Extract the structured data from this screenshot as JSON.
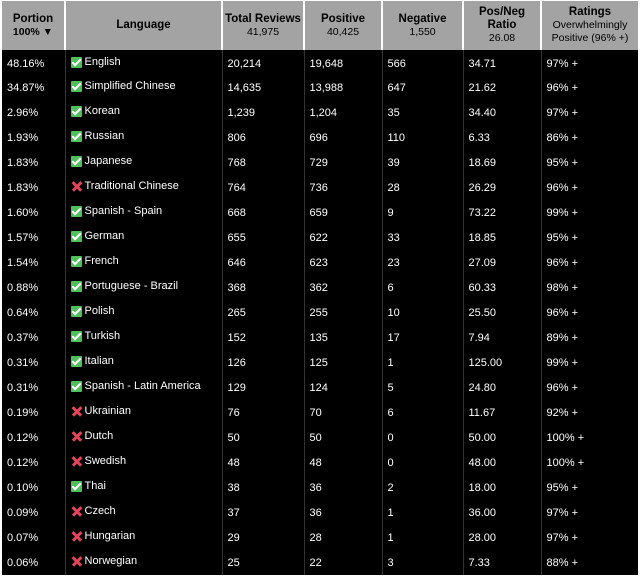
{
  "header": {
    "portion_label": "Portion",
    "portion_sub": "100% ▼",
    "language_label": "Language",
    "total_label": "Total Reviews",
    "total_sub": "41,975",
    "positive_label": "Positive",
    "positive_sub": "40,425",
    "negative_label": "Negative",
    "negative_sub": "1,550",
    "ratio_label": "Pos/Neg Ratio",
    "ratio_sub": "26.08",
    "ratings_label": "Ratings",
    "ratings_sub": "Overwhelmingly Positive (96% +)"
  },
  "colors": {
    "header_bg": "#a3a3a3",
    "table_bg": "#000000",
    "check_green": "#4fc05b",
    "cross_red": "#e0455a"
  },
  "rows": [
    {
      "portion": "48.16%",
      "icon": "check-icon",
      "language": "English",
      "total": "20,214",
      "positive": "19,648",
      "negative": "566",
      "ratio": "34.71",
      "rating": "97% +"
    },
    {
      "portion": "34.87%",
      "icon": "check-icon",
      "language": "Simplified Chinese",
      "total": "14,635",
      "positive": "13,988",
      "negative": "647",
      "ratio": "21.62",
      "rating": "96% +"
    },
    {
      "portion": "2.96%",
      "icon": "check-icon",
      "language": "Korean",
      "total": "1,239",
      "positive": "1,204",
      "negative": "35",
      "ratio": "34.40",
      "rating": "97% +"
    },
    {
      "portion": "1.93%",
      "icon": "check-icon",
      "language": "Russian",
      "total": "806",
      "positive": "696",
      "negative": "110",
      "ratio": "6.33",
      "rating": "86% +"
    },
    {
      "portion": "1.83%",
      "icon": "check-icon",
      "language": "Japanese",
      "total": "768",
      "positive": "729",
      "negative": "39",
      "ratio": "18.69",
      "rating": "95% +"
    },
    {
      "portion": "1.83%",
      "icon": "cross-icon",
      "language": "Traditional Chinese",
      "total": "764",
      "positive": "736",
      "negative": "28",
      "ratio": "26.29",
      "rating": "96% +"
    },
    {
      "portion": "1.60%",
      "icon": "check-icon",
      "language": "Spanish - Spain",
      "total": "668",
      "positive": "659",
      "negative": "9",
      "ratio": "73.22",
      "rating": "99% +"
    },
    {
      "portion": "1.57%",
      "icon": "check-icon",
      "language": "German",
      "total": "655",
      "positive": "622",
      "negative": "33",
      "ratio": "18.85",
      "rating": "95% +"
    },
    {
      "portion": "1.54%",
      "icon": "check-icon",
      "language": "French",
      "total": "646",
      "positive": "623",
      "negative": "23",
      "ratio": "27.09",
      "rating": "96% +"
    },
    {
      "portion": "0.88%",
      "icon": "check-icon",
      "language": "Portuguese - Brazil",
      "total": "368",
      "positive": "362",
      "negative": "6",
      "ratio": "60.33",
      "rating": "98% +"
    },
    {
      "portion": "0.64%",
      "icon": "check-icon",
      "language": "Polish",
      "total": "265",
      "positive": "255",
      "negative": "10",
      "ratio": "25.50",
      "rating": "96% +"
    },
    {
      "portion": "0.37%",
      "icon": "check-icon",
      "language": "Turkish",
      "total": "152",
      "positive": "135",
      "negative": "17",
      "ratio": "7.94",
      "rating": "89% +"
    },
    {
      "portion": "0.31%",
      "icon": "check-icon",
      "language": "Italian",
      "total": "126",
      "positive": "125",
      "negative": "1",
      "ratio": "125.00",
      "rating": "99% +"
    },
    {
      "portion": "0.31%",
      "icon": "check-icon",
      "language": "Spanish - Latin America",
      "total": "129",
      "positive": "124",
      "negative": "5",
      "ratio": "24.80",
      "rating": "96% +"
    },
    {
      "portion": "0.19%",
      "icon": "cross-icon",
      "language": "Ukrainian",
      "total": "76",
      "positive": "70",
      "negative": "6",
      "ratio": "11.67",
      "rating": "92% +"
    },
    {
      "portion": "0.12%",
      "icon": "cross-icon",
      "language": "Dutch",
      "total": "50",
      "positive": "50",
      "negative": "0",
      "ratio": "50.00",
      "rating": "100% +"
    },
    {
      "portion": "0.12%",
      "icon": "cross-icon",
      "language": "Swedish",
      "total": "48",
      "positive": "48",
      "negative": "0",
      "ratio": "48.00",
      "rating": "100% +"
    },
    {
      "portion": "0.10%",
      "icon": "check-icon",
      "language": "Thai",
      "total": "38",
      "positive": "36",
      "negative": "2",
      "ratio": "18.00",
      "rating": "95% +"
    },
    {
      "portion": "0.09%",
      "icon": "cross-icon",
      "language": "Czech",
      "total": "37",
      "positive": "36",
      "negative": "1",
      "ratio": "36.00",
      "rating": "97% +"
    },
    {
      "portion": "0.07%",
      "icon": "cross-icon",
      "language": "Hungarian",
      "total": "29",
      "positive": "28",
      "negative": "1",
      "ratio": "28.00",
      "rating": "97% +"
    },
    {
      "portion": "0.06%",
      "icon": "cross-icon",
      "language": "Norwegian",
      "total": "25",
      "positive": "22",
      "negative": "3",
      "ratio": "7.33",
      "rating": "88% +"
    }
  ]
}
